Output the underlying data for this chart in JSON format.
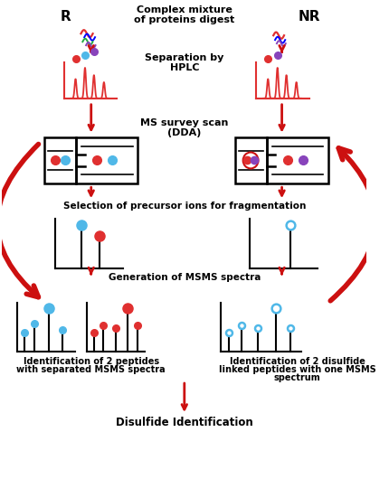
{
  "background_color": "#ffffff",
  "red": "#e03030",
  "blue": "#50b8e8",
  "dark_red": "#cc1010",
  "purple": "#8844bb",
  "green": "#22aa44",
  "labels": {
    "top_center": [
      "Complex mixture",
      "of proteins digest"
    ],
    "sep_hplc": [
      "Separation by",
      "HPLC"
    ],
    "ms_survey": [
      "MS survey scan",
      "(DDA)"
    ],
    "selection": "Selection of precursor ions for fragmentation",
    "generation": "Generation of MSMS spectra",
    "id_left": [
      "Identification of 2 peptides",
      "with separated MSMS spectra"
    ],
    "id_right": [
      "Identification of 2 disulfide",
      "linked peptides with one MSMS",
      "spectrum"
    ],
    "bottom": "Disulfide Identification",
    "R": "R",
    "NR": "NR"
  }
}
